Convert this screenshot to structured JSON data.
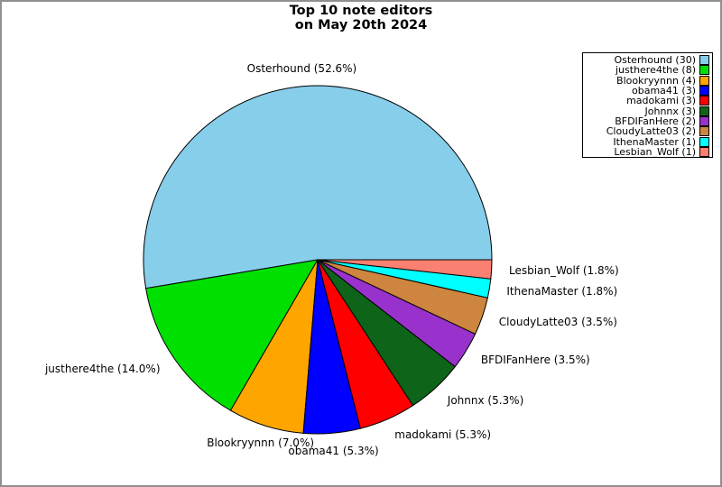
{
  "figure": {
    "title_line1": "Top 10 note editors",
    "title_line2": "on May 20th 2024"
  },
  "chart_data": {
    "type": "pie",
    "title": "Top 10 note editors on May 20th 2024",
    "total": 57,
    "start_angle_deg": 0,
    "direction": "counterclockwise",
    "legend_position": "upper-right",
    "label_distance": 1.1,
    "slices": [
      {
        "name": "Osterhound",
        "count": 30,
        "percent": 52.6,
        "slice_label": "Osterhound (52.6%)",
        "legend_label": "Osterhound (30)",
        "color": "#87CEEB"
      },
      {
        "name": "justhere4the",
        "count": 8,
        "percent": 14.0,
        "slice_label": "justhere4the (14.0%)",
        "legend_label": "justhere4the (8)",
        "color": "#00E000"
      },
      {
        "name": "Blookryynnn",
        "count": 4,
        "percent": 7.0,
        "slice_label": "Blookryynnn (7.0%)",
        "legend_label": "Blookryynnn (4)",
        "color": "#FFA500"
      },
      {
        "name": "obama41",
        "count": 3,
        "percent": 5.3,
        "slice_label": "obama41 (5.3%)",
        "legend_label": "obama41 (3)",
        "color": "#0000FF"
      },
      {
        "name": "madokami",
        "count": 3,
        "percent": 5.3,
        "slice_label": "madokami (5.3%)",
        "legend_label": "madokami (3)",
        "color": "#FF0000"
      },
      {
        "name": "Johnnx",
        "count": 3,
        "percent": 5.3,
        "slice_label": "Johnnx (5.3%)",
        "legend_label": "Johnnx (3)",
        "color": "#0E6418"
      },
      {
        "name": "BFDIFanHere",
        "count": 2,
        "percent": 3.5,
        "slice_label": "BFDIFanHere (3.5%)",
        "legend_label": "BFDIFanHere (2)",
        "color": "#9932CC"
      },
      {
        "name": "CloudyLatte03",
        "count": 2,
        "percent": 3.5,
        "slice_label": "CloudyLatte03 (3.5%)",
        "legend_label": "CloudyLatte03 (2)",
        "color": "#CD853F"
      },
      {
        "name": "IthenaMaster",
        "count": 1,
        "percent": 1.8,
        "slice_label": "IthenaMaster (1.8%)",
        "legend_label": "IthenaMaster (1)",
        "color": "#00FFFF"
      },
      {
        "name": "Lesbian_Wolf",
        "count": 1,
        "percent": 1.8,
        "slice_label": "Lesbian_Wolf (1.8%)",
        "legend_label": "Lesbian_Wolf (1)",
        "color": "#FA8072"
      }
    ]
  }
}
